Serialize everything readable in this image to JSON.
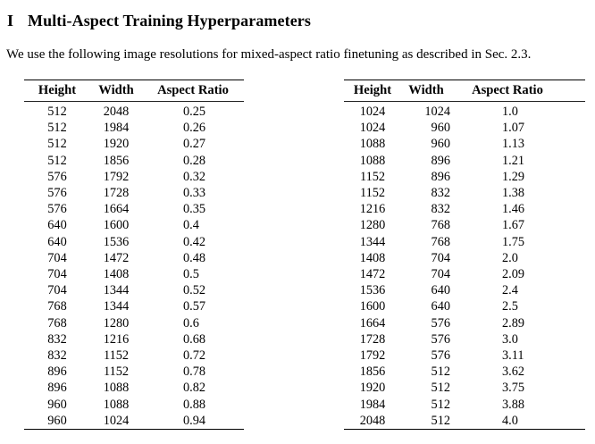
{
  "section": {
    "number": "I",
    "title": "Multi-Aspect Training Hyperparameters"
  },
  "intro": "We use the following image resolutions for mixed-aspect ratio finetuning as described in Sec. 2.3.",
  "tables": {
    "headers": [
      "Height",
      "Width",
      "Aspect Ratio"
    ],
    "left": {
      "rows": [
        [
          "512",
          "2048",
          "0.25"
        ],
        [
          "512",
          "1984",
          "0.26"
        ],
        [
          "512",
          "1920",
          "0.27"
        ],
        [
          "512",
          "1856",
          "0.28"
        ],
        [
          "576",
          "1792",
          "0.32"
        ],
        [
          "576",
          "1728",
          "0.33"
        ],
        [
          "576",
          "1664",
          "0.35"
        ],
        [
          "640",
          "1600",
          "0.4"
        ],
        [
          "640",
          "1536",
          "0.42"
        ],
        [
          "704",
          "1472",
          "0.48"
        ],
        [
          "704",
          "1408",
          "0.5"
        ],
        [
          "704",
          "1344",
          "0.52"
        ],
        [
          "768",
          "1344",
          "0.57"
        ],
        [
          "768",
          "1280",
          "0.6"
        ],
        [
          "832",
          "1216",
          "0.68"
        ],
        [
          "832",
          "1152",
          "0.72"
        ],
        [
          "896",
          "1152",
          "0.78"
        ],
        [
          "896",
          "1088",
          "0.82"
        ],
        [
          "960",
          "1088",
          "0.88"
        ],
        [
          "960",
          "1024",
          "0.94"
        ]
      ]
    },
    "right": {
      "rows": [
        [
          "1024",
          "1024",
          "1.0"
        ],
        [
          "1024",
          "960",
          "1.07"
        ],
        [
          "1088",
          "960",
          "1.13"
        ],
        [
          "1088",
          "896",
          "1.21"
        ],
        [
          "1152",
          "896",
          "1.29"
        ],
        [
          "1152",
          "832",
          "1.38"
        ],
        [
          "1216",
          "832",
          "1.46"
        ],
        [
          "1280",
          "768",
          "1.67"
        ],
        [
          "1344",
          "768",
          "1.75"
        ],
        [
          "1408",
          "704",
          "2.0"
        ],
        [
          "1472",
          "704",
          "2.09"
        ],
        [
          "1536",
          "640",
          "2.4"
        ],
        [
          "1600",
          "640",
          "2.5"
        ],
        [
          "1664",
          "576",
          "2.89"
        ],
        [
          "1728",
          "576",
          "3.0"
        ],
        [
          "1792",
          "576",
          "3.11"
        ],
        [
          "1856",
          "512",
          "3.62"
        ],
        [
          "1920",
          "512",
          "3.75"
        ],
        [
          "1984",
          "512",
          "3.88"
        ],
        [
          "2048",
          "512",
          "4.0"
        ]
      ]
    }
  }
}
